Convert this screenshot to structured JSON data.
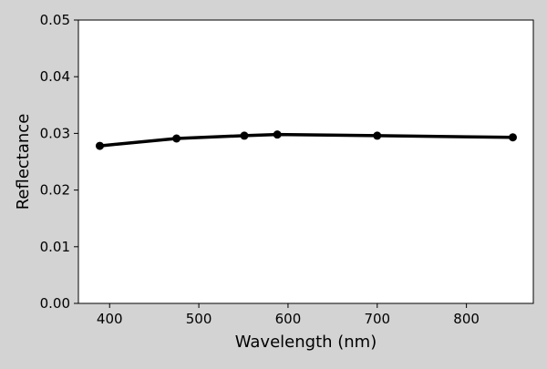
{
  "chart_data": {
    "type": "line",
    "title": "",
    "xlabel": "Wavelength (nm)",
    "ylabel": "Reflectance",
    "xlim": [
      365,
      875
    ],
    "ylim": [
      0.0,
      0.05
    ],
    "x_ticks": [
      400,
      500,
      600,
      700,
      800
    ],
    "x_tick_labels": [
      "400",
      "500",
      "600",
      "700",
      "800"
    ],
    "y_ticks": [
      0.0,
      0.01,
      0.02,
      0.03,
      0.04,
      0.05
    ],
    "y_tick_labels": [
      "0.00",
      "0.01",
      "0.02",
      "0.03",
      "0.04",
      "0.05"
    ],
    "grid": false,
    "legend": "none",
    "series": [
      {
        "color": "#000000",
        "x": [
          389,
          475,
          551,
          588,
          700,
          852
        ],
        "y": [
          0.0278,
          0.0291,
          0.0296,
          0.0298,
          0.0296,
          0.0293
        ]
      }
    ]
  }
}
